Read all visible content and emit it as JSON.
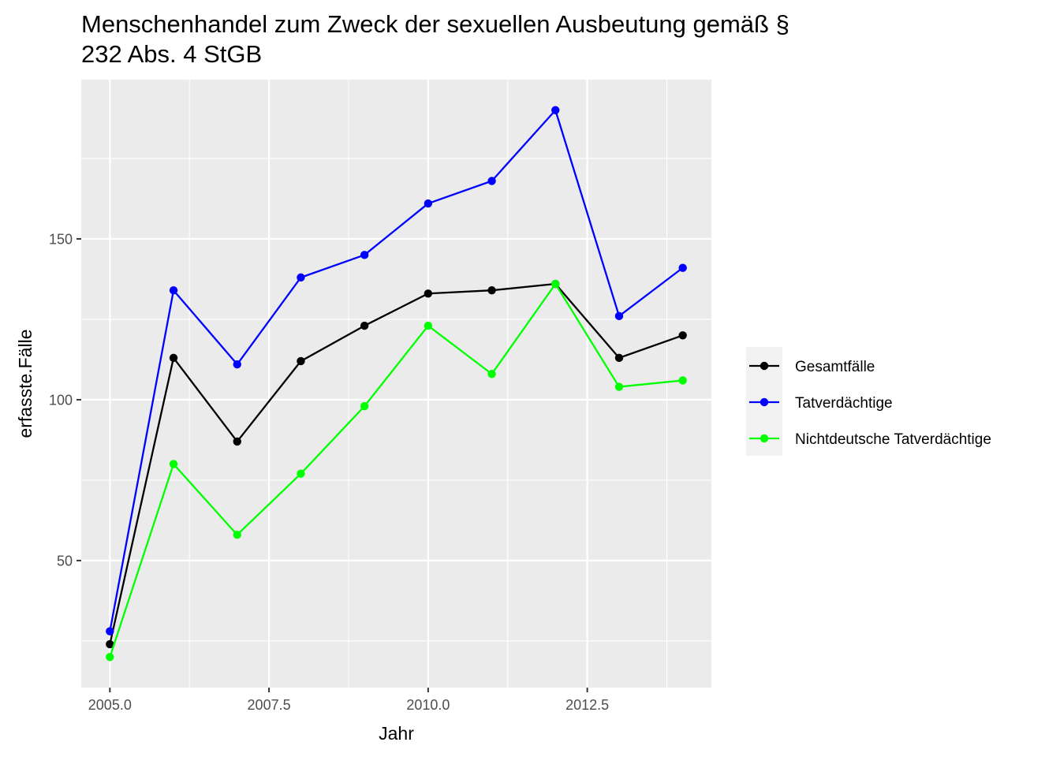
{
  "chart_data": {
    "type": "line",
    "title_lines": [
      "Menschenhandel zum Zweck der sexuellen Ausbeutung gemäß §",
      "232 Abs. 4 StGB"
    ],
    "xlabel": "Jahr",
    "ylabel": "erfasste.Fälle",
    "xlim": [
      2004.55,
      2014.45
    ],
    "ylim": [
      10.5,
      199.5
    ],
    "x_ticks": [
      2005.0,
      2007.5,
      2010.0,
      2012.5
    ],
    "x_tick_labels": [
      "2005.0",
      "2007.5",
      "2010.0",
      "2012.5"
    ],
    "y_ticks": [
      50,
      100,
      150
    ],
    "y_tick_labels": [
      "50",
      "100",
      "150"
    ],
    "grid": true,
    "legend_position": "right",
    "x": [
      2005,
      2006,
      2007,
      2008,
      2009,
      2010,
      2011,
      2012,
      2013,
      2014
    ],
    "series": [
      {
        "name": "Gesamtfälle",
        "color": "#000000",
        "values": [
          24,
          113,
          87,
          112,
          123,
          133,
          134,
          136,
          113,
          120
        ]
      },
      {
        "name": "Tatverdächtige",
        "color": "#0000ff",
        "values": [
          28,
          134,
          111,
          138,
          145,
          161,
          168,
          190,
          126,
          141
        ]
      },
      {
        "name": "Nichtdeutsche Tatverdächtige",
        "color": "#00ff00",
        "values": [
          20,
          80,
          58,
          77,
          98,
          123,
          108,
          136,
          104,
          106
        ]
      }
    ]
  }
}
